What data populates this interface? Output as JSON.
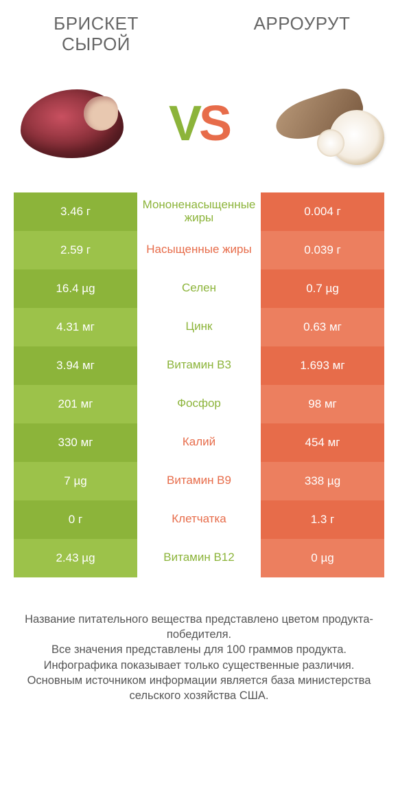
{
  "colors": {
    "green_dark": "#8cb43a",
    "green_light": "#9cc24a",
    "orange_dark": "#e76c4a",
    "orange_light": "#ec7f5f",
    "mid_green_text": "#8cb43a",
    "mid_orange_text": "#e76c4a",
    "page_bg": "#ffffff",
    "body_text": "#555555"
  },
  "header": {
    "left_title": "БРИСКЕТ СЫРОЙ",
    "right_title": "АРРОУРУТ"
  },
  "vs": {
    "v": "V",
    "s": "S"
  },
  "rows": [
    {
      "left": "3.46 г",
      "label": "Мононенасыщенные жиры",
      "right": "0.004 г",
      "winner": "left"
    },
    {
      "left": "2.59 г",
      "label": "Насыщенные жиры",
      "right": "0.039 г",
      "winner": "right"
    },
    {
      "left": "16.4 µg",
      "label": "Селен",
      "right": "0.7 µg",
      "winner": "left"
    },
    {
      "left": "4.31 мг",
      "label": "Цинк",
      "right": "0.63 мг",
      "winner": "left"
    },
    {
      "left": "3.94 мг",
      "label": "Витамин B3",
      "right": "1.693 мг",
      "winner": "left"
    },
    {
      "left": "201 мг",
      "label": "Фосфор",
      "right": "98 мг",
      "winner": "left"
    },
    {
      "left": "330 мг",
      "label": "Калий",
      "right": "454 мг",
      "winner": "right"
    },
    {
      "left": "7 µg",
      "label": "Витамин B9",
      "right": "338 µg",
      "winner": "right"
    },
    {
      "left": "0 г",
      "label": "Клетчатка",
      "right": "1.3 г",
      "winner": "right"
    },
    {
      "left": "2.43 µg",
      "label": "Витамин B12",
      "right": "0 µg",
      "winner": "left"
    }
  ],
  "footer_lines": [
    "Название питательного вещества представлено цветом продукта-победителя.",
    "Все значения представлены для 100 граммов продукта.",
    "Инфографика показывает только существенные различия.",
    "Основным источником информации является база министерства сельского хозяйства США."
  ]
}
